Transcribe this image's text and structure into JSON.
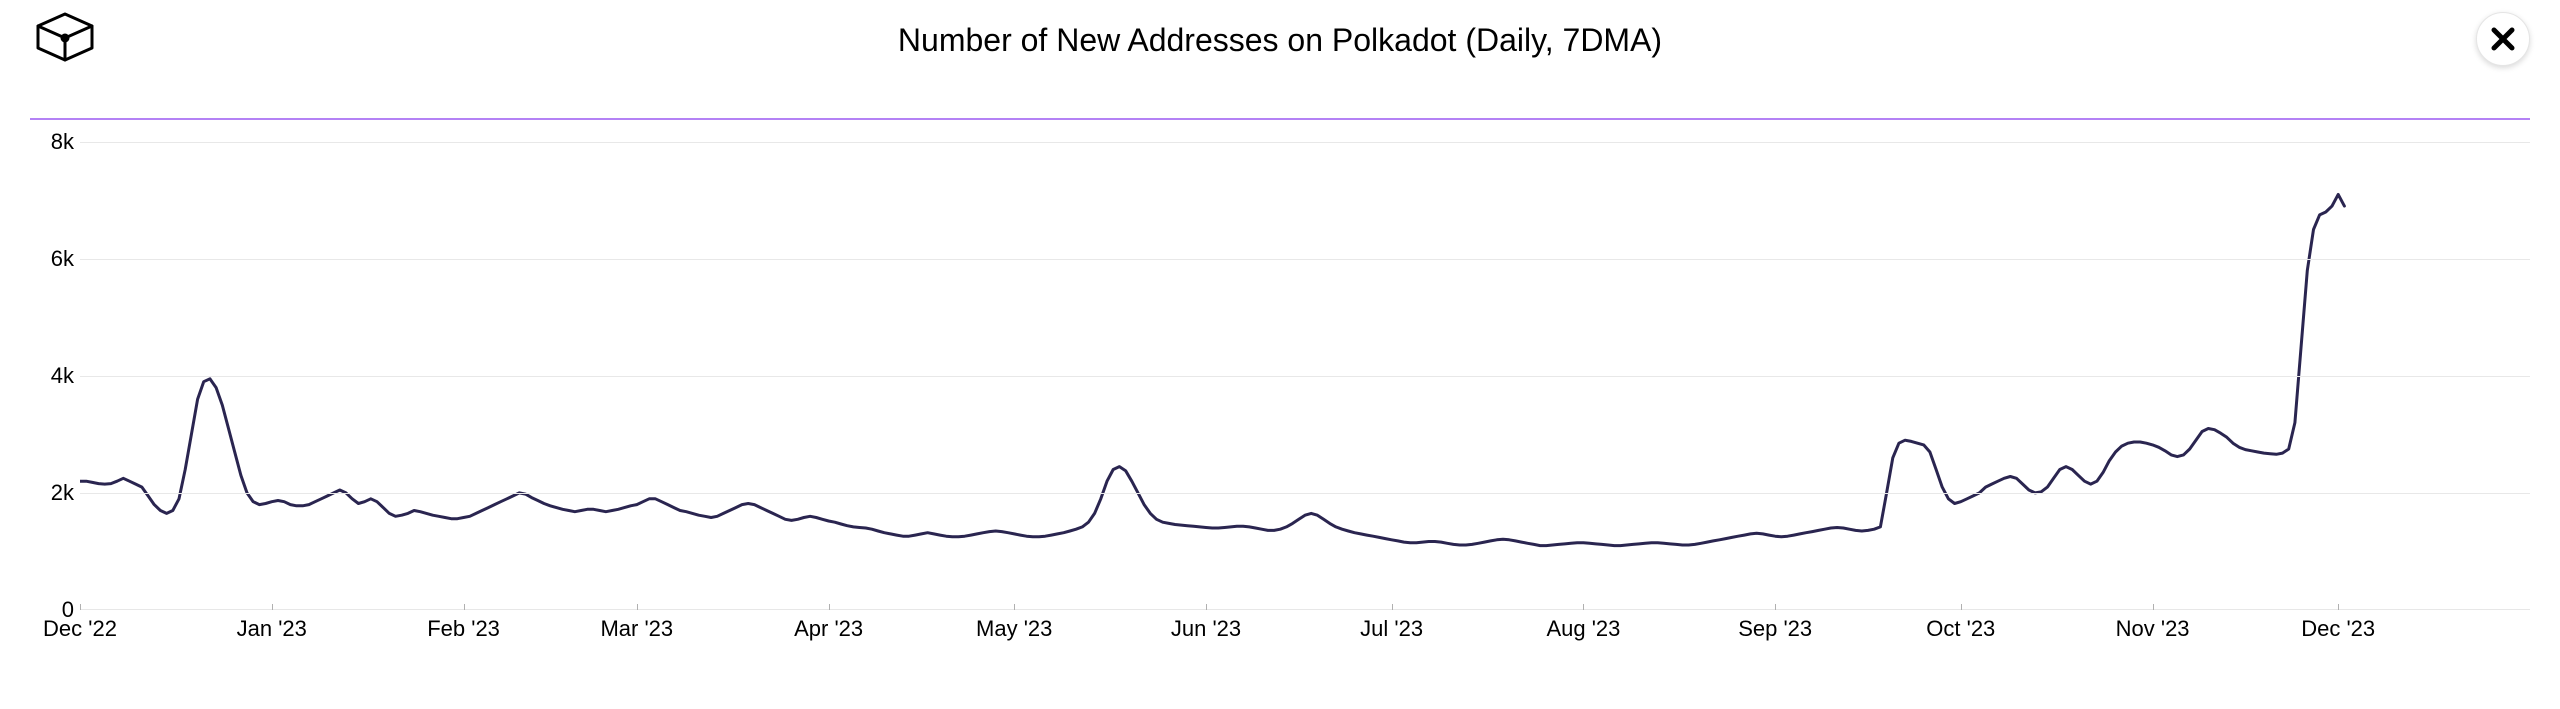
{
  "title": "Number of New Addresses on Polkadot (Daily, 7DMA)",
  "legend_color": "#b482f5",
  "line_color": "#2a2550",
  "line_width": 3,
  "grid_color": "#e8e8e8",
  "background_color": "#ffffff",
  "close_icon_color": "#000000",
  "y_axis": {
    "min": 0,
    "max": 8200,
    "ticks": [
      {
        "value": 0,
        "label": "0"
      },
      {
        "value": 2000,
        "label": "2k"
      },
      {
        "value": 4000,
        "label": "4k"
      },
      {
        "value": 6000,
        "label": "6k"
      },
      {
        "value": 8000,
        "label": "8k"
      }
    ],
    "label_fontsize": 22,
    "label_color": "#000000"
  },
  "x_axis": {
    "ticks": [
      {
        "idx": 0,
        "label": "Dec '22"
      },
      {
        "idx": 31,
        "label": "Jan '23"
      },
      {
        "idx": 62,
        "label": "Feb '23"
      },
      {
        "idx": 90,
        "label": "Mar '23"
      },
      {
        "idx": 121,
        "label": "Apr '23"
      },
      {
        "idx": 151,
        "label": "May '23"
      },
      {
        "idx": 182,
        "label": "Jun '23"
      },
      {
        "idx": 212,
        "label": "Jul '23"
      },
      {
        "idx": 243,
        "label": "Aug '23"
      },
      {
        "idx": 274,
        "label": "Sep '23"
      },
      {
        "idx": 304,
        "label": "Oct '23"
      },
      {
        "idx": 335,
        "label": "Nov '23"
      },
      {
        "idx": 365,
        "label": "Dec '23"
      }
    ],
    "label_fontsize": 22,
    "label_color": "#000000"
  },
  "series": {
    "n_points": 397,
    "values": [
      2200,
      2200,
      2180,
      2160,
      2150,
      2160,
      2200,
      2250,
      2200,
      2150,
      2100,
      1950,
      1800,
      1700,
      1650,
      1700,
      1900,
      2400,
      3000,
      3600,
      3900,
      3950,
      3800,
      3500,
      3100,
      2700,
      2300,
      2000,
      1850,
      1800,
      1820,
      1850,
      1870,
      1850,
      1800,
      1780,
      1780,
      1800,
      1850,
      1900,
      1950,
      2000,
      2050,
      2000,
      1900,
      1820,
      1850,
      1900,
      1850,
      1750,
      1650,
      1600,
      1620,
      1650,
      1700,
      1680,
      1650,
      1620,
      1600,
      1580,
      1560,
      1560,
      1580,
      1600,
      1650,
      1700,
      1750,
      1800,
      1850,
      1900,
      1950,
      2000,
      1980,
      1920,
      1870,
      1820,
      1780,
      1750,
      1720,
      1700,
      1680,
      1700,
      1720,
      1720,
      1700,
      1680,
      1700,
      1720,
      1750,
      1780,
      1800,
      1850,
      1900,
      1900,
      1850,
      1800,
      1750,
      1700,
      1680,
      1650,
      1620,
      1600,
      1580,
      1600,
      1650,
      1700,
      1750,
      1800,
      1820,
      1800,
      1750,
      1700,
      1650,
      1600,
      1550,
      1530,
      1550,
      1580,
      1600,
      1580,
      1550,
      1520,
      1500,
      1470,
      1440,
      1420,
      1410,
      1400,
      1380,
      1350,
      1320,
      1300,
      1280,
      1260,
      1260,
      1280,
      1300,
      1320,
      1300,
      1280,
      1260,
      1250,
      1250,
      1260,
      1280,
      1300,
      1320,
      1340,
      1350,
      1340,
      1320,
      1300,
      1280,
      1260,
      1250,
      1250,
      1260,
      1280,
      1300,
      1320,
      1350,
      1380,
      1420,
      1500,
      1650,
      1900,
      2200,
      2400,
      2450,
      2380,
      2200,
      2000,
      1800,
      1650,
      1550,
      1500,
      1480,
      1460,
      1450,
      1440,
      1430,
      1420,
      1410,
      1400,
      1400,
      1410,
      1420,
      1430,
      1430,
      1420,
      1400,
      1380,
      1360,
      1360,
      1380,
      1420,
      1480,
      1550,
      1620,
      1650,
      1620,
      1550,
      1480,
      1420,
      1380,
      1350,
      1320,
      1300,
      1280,
      1260,
      1240,
      1220,
      1200,
      1180,
      1160,
      1150,
      1150,
      1160,
      1170,
      1170,
      1160,
      1140,
      1120,
      1110,
      1110,
      1120,
      1140,
      1160,
      1180,
      1200,
      1210,
      1200,
      1180,
      1160,
      1140,
      1120,
      1100,
      1100,
      1110,
      1120,
      1130,
      1140,
      1150,
      1150,
      1140,
      1130,
      1120,
      1110,
      1100,
      1100,
      1110,
      1120,
      1130,
      1140,
      1150,
      1150,
      1140,
      1130,
      1120,
      1110,
      1110,
      1120,
      1140,
      1160,
      1180,
      1200,
      1220,
      1240,
      1260,
      1280,
      1300,
      1310,
      1300,
      1280,
      1260,
      1250,
      1260,
      1280,
      1300,
      1320,
      1340,
      1360,
      1380,
      1400,
      1410,
      1400,
      1380,
      1360,
      1350,
      1360,
      1380,
      1420,
      2000,
      2600,
      2850,
      2900,
      2880,
      2850,
      2820,
      2700,
      2400,
      2100,
      1900,
      1820,
      1850,
      1900,
      1950,
      2000,
      2100,
      2150,
      2200,
      2250,
      2280,
      2250,
      2150,
      2050,
      2000,
      2020,
      2100,
      2250,
      2400,
      2450,
      2400,
      2300,
      2200,
      2150,
      2200,
      2350,
      2550,
      2700,
      2800,
      2850,
      2870,
      2870,
      2850,
      2820,
      2780,
      2720,
      2650,
      2620,
      2650,
      2750,
      2900,
      3050,
      3100,
      3080,
      3020,
      2950,
      2850,
      2780,
      2740,
      2720,
      2700,
      2680,
      2670,
      2660,
      2680,
      2750,
      3200,
      4500,
      5800,
      6500,
      6750,
      6800,
      6900,
      7100,
      6900
    ]
  }
}
